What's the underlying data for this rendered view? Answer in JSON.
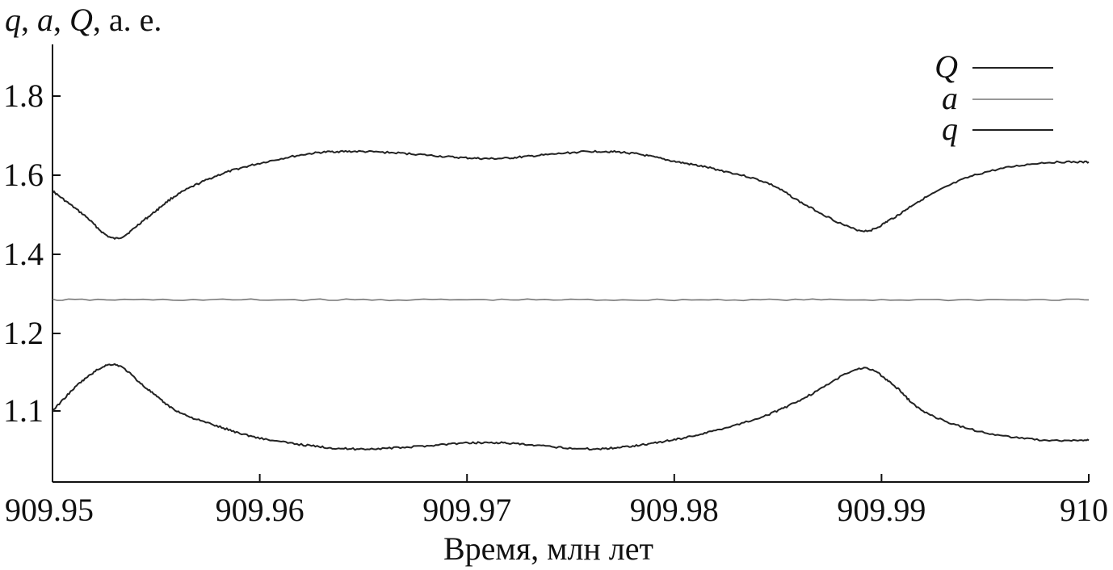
{
  "chart_data": {
    "type": "line",
    "ylabel_parts": [
      {
        "text": "q",
        "italic": true
      },
      {
        "text": ", ",
        "italic": false
      },
      {
        "text": "a",
        "italic": true
      },
      {
        "text": ", ",
        "italic": false
      },
      {
        "text": "Q",
        "italic": true
      },
      {
        "text": ", а. е.",
        "italic": false
      }
    ],
    "xlabel": "Время, млн лет",
    "xlim": [
      909.95,
      910.0
    ],
    "x_ticks": [
      "909.95",
      "909.96",
      "909.97",
      "909.98",
      "909.99",
      "910"
    ],
    "y_ticks": [
      {
        "value": 1.1,
        "label": "1.1"
      },
      {
        "value": 1.2,
        "label": "1.2"
      },
      {
        "value": 1.4,
        "label": "1.4"
      },
      {
        "value": 1.6,
        "label": "1.6"
      },
      {
        "value": 1.8,
        "label": "1.8"
      }
    ],
    "legend_position": "top-right",
    "series": [
      {
        "name": "Q",
        "color": "#222222",
        "x": [
          909.95,
          909.9515,
          909.953,
          909.9545,
          909.956,
          909.958,
          909.96,
          909.9625,
          909.9645,
          909.967,
          909.9695,
          909.9715,
          909.9735,
          909.976,
          909.978,
          909.98,
          909.982,
          909.9845,
          909.9865,
          909.989,
          909.9905,
          909.992,
          909.9945,
          909.9975,
          910.0
        ],
        "values": [
          1.56,
          1.5,
          1.44,
          1.49,
          1.55,
          1.6,
          1.63,
          1.655,
          1.66,
          1.655,
          1.645,
          1.642,
          1.65,
          1.66,
          1.655,
          1.635,
          1.615,
          1.58,
          1.52,
          1.46,
          1.49,
          1.54,
          1.6,
          1.63,
          1.633
        ]
      },
      {
        "name": "a",
        "color": "#777777",
        "x": [
          909.95,
          909.96,
          909.97,
          909.98,
          909.99,
          910.0
        ],
        "values": [
          1.285,
          1.285,
          1.285,
          1.285,
          1.285,
          1.285
        ]
      },
      {
        "name": "q",
        "color": "#222222",
        "x": [
          909.95,
          909.9515,
          909.953,
          909.9545,
          909.956,
          909.958,
          909.96,
          909.9625,
          909.9645,
          909.967,
          909.9695,
          909.9715,
          909.9735,
          909.976,
          909.978,
          909.98,
          909.982,
          909.9845,
          909.9865,
          909.989,
          909.9905,
          909.992,
          909.9945,
          909.9975,
          910.0
        ],
        "values": [
          1.1,
          1.14,
          1.16,
          1.13,
          1.1,
          1.08,
          1.065,
          1.055,
          1.051,
          1.053,
          1.058,
          1.059,
          1.055,
          1.051,
          1.055,
          1.063,
          1.075,
          1.095,
          1.12,
          1.155,
          1.135,
          1.1,
          1.075,
          1.063,
          1.062
        ]
      }
    ]
  }
}
